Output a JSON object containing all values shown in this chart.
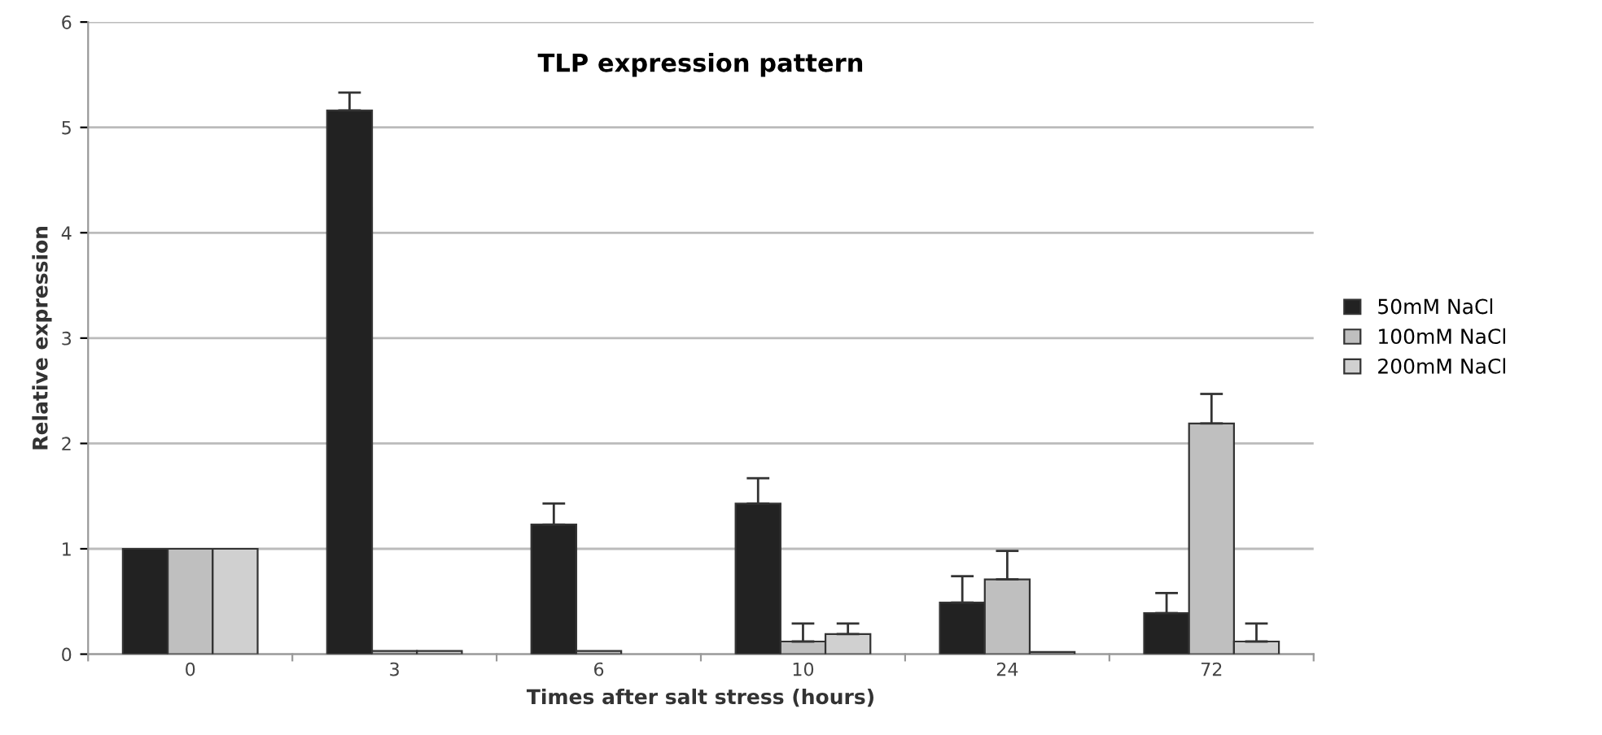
{
  "chart_data": {
    "type": "bar",
    "title": "TLP expression pattern",
    "xlabel": "Times after salt stress (hours)",
    "ylabel": "Relative expression",
    "categories": [
      "0",
      "3",
      "6",
      "10",
      "24",
      "72"
    ],
    "series": [
      {
        "name": "50mM NaCl",
        "color": "#222222",
        "values": [
          1,
          5.16,
          1.23,
          1.43,
          0.49,
          0.39
        ],
        "errors": [
          null,
          [
            5.16,
            5.33
          ],
          [
            1.23,
            1.43
          ],
          [
            1.43,
            1.67
          ],
          [
            0.49,
            0.74
          ],
          [
            0.39,
            0.58
          ]
        ]
      },
      {
        "name": "100mM NaCl",
        "color": "#bfbfbf",
        "values": [
          1,
          0.03,
          0.03,
          0.12,
          0.71,
          2.19
        ],
        "errors": [
          null,
          null,
          null,
          [
            0.12,
            0.29
          ],
          [
            0.71,
            0.98
          ],
          [
            2.19,
            2.47
          ]
        ]
      },
      {
        "name": "200mM NaCl",
        "color": "#d0d0d0",
        "values": [
          1,
          0.03,
          null,
          0.19,
          0.02,
          0.12
        ],
        "errors": [
          null,
          null,
          null,
          [
            0.19,
            0.29
          ],
          null,
          [
            0.12,
            0.29
          ]
        ]
      }
    ],
    "ylim": [
      0,
      6
    ],
    "yticks": [
      0,
      1,
      2,
      3,
      4,
      5,
      6
    ],
    "grid": "y",
    "legend": "right"
  }
}
